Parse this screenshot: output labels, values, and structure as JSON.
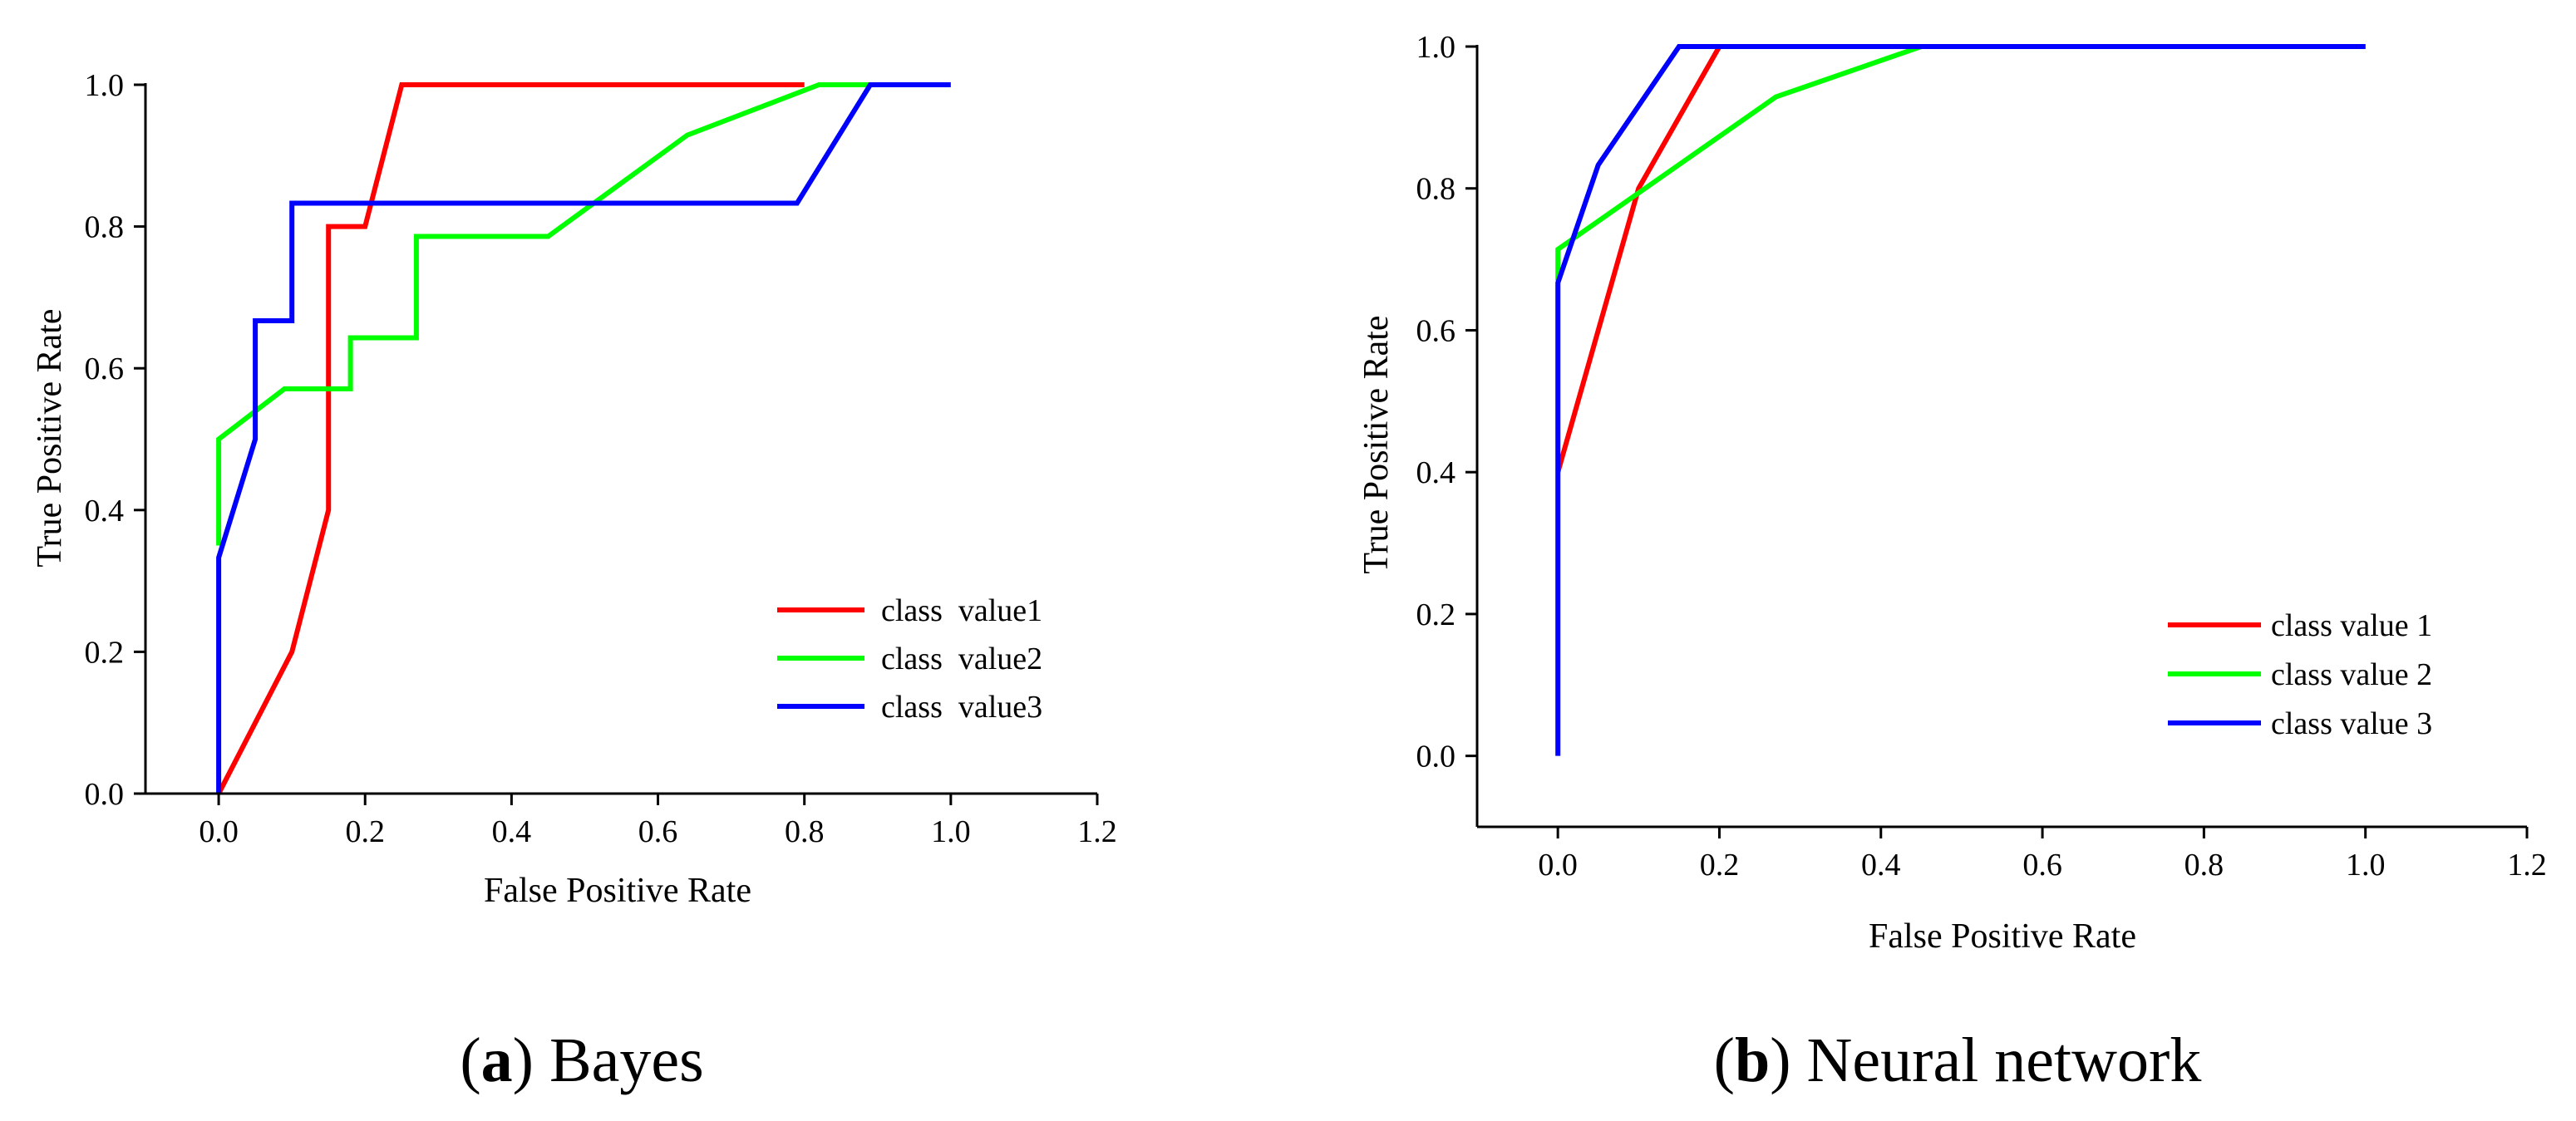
{
  "chart_data": [
    {
      "type": "line",
      "caption": {
        "letter": "a",
        "text": "Bayes"
      },
      "xlabel": "False Positive Rate",
      "ylabel": "True Positive Rate",
      "xlim": [
        -0.1,
        1.2
      ],
      "ylim": [
        0.0,
        1.0
      ],
      "xticks": [
        0.0,
        0.2,
        0.4,
        0.6,
        0.8,
        1.0,
        1.2
      ],
      "xtick_labels": [
        "0.0",
        "0.2",
        "0.4",
        "0.6",
        "0.8",
        "1.0",
        "1.2"
      ],
      "yticks": [
        0.0,
        0.2,
        0.4,
        0.6,
        0.8,
        1.0
      ],
      "ytick_labels": [
        "0.0",
        "0.2",
        "0.4",
        "0.6",
        "0.8",
        "1.0"
      ],
      "legend_position": "center-right",
      "series": [
        {
          "name": "class  value1",
          "color": "#ff0000",
          "x": [
            0.0,
            0.1,
            0.15,
            0.15,
            0.2,
            0.25,
            0.8
          ],
          "y": [
            0.0,
            0.2,
            0.4,
            0.8,
            0.8,
            1.0,
            1.0
          ]
        },
        {
          "name": "class  value2",
          "color": "#00ff00",
          "x": [
            0.0,
            0.0,
            0.09,
            0.18,
            0.18,
            0.27,
            0.27,
            0.45,
            0.64,
            0.82,
            0.9
          ],
          "y": [
            0.35,
            0.5,
            0.571,
            0.571,
            0.643,
            0.643,
            0.786,
            0.786,
            0.929,
            1.0,
            1.0
          ]
        },
        {
          "name": "class  value3",
          "color": "#0000ff",
          "x": [
            0.0,
            0.0,
            0.05,
            0.05,
            0.1,
            0.1,
            0.79,
            0.89,
            1.0
          ],
          "y": [
            0.0,
            0.333,
            0.5,
            0.667,
            0.667,
            0.833,
            0.833,
            1.0,
            1.0
          ]
        }
      ]
    },
    {
      "type": "line",
      "caption": {
        "letter": "b",
        "text": "Neural network"
      },
      "xlabel": "False Positive Rate",
      "ylabel": "True Positive Rate",
      "xlim": [
        -0.1,
        1.2
      ],
      "ylim": [
        -0.1,
        1.0
      ],
      "xticks": [
        0.0,
        0.2,
        0.4,
        0.6,
        0.8,
        1.0,
        1.2
      ],
      "xtick_labels": [
        "0.0",
        "0.2",
        "0.4",
        "0.6",
        "0.8",
        "1.0",
        "1.2"
      ],
      "yticks": [
        0.0,
        0.2,
        0.4,
        0.6,
        0.8,
        1.0
      ],
      "ytick_labels": [
        "0.0",
        "0.2",
        "0.4",
        "0.6",
        "0.8",
        "1.0"
      ],
      "legend_position": "center-right",
      "series": [
        {
          "name": "class value 1",
          "color": "#ff0000",
          "x": [
            0.0,
            0.1,
            0.2,
            1.0
          ],
          "y": [
            0.4,
            0.8,
            1.0,
            1.0
          ]
        },
        {
          "name": "class value 2",
          "color": "#00ff00",
          "x": [
            0.0,
            0.0,
            0.27,
            0.45,
            1.0
          ],
          "y": [
            0.67,
            0.714,
            0.929,
            1.0,
            1.0
          ]
        },
        {
          "name": "class value 3",
          "color": "#0000ff",
          "x": [
            0.0,
            0.0,
            0.05,
            0.15,
            1.0
          ],
          "y": [
            0.0,
            0.667,
            0.833,
            1.0,
            1.0
          ]
        }
      ]
    }
  ]
}
